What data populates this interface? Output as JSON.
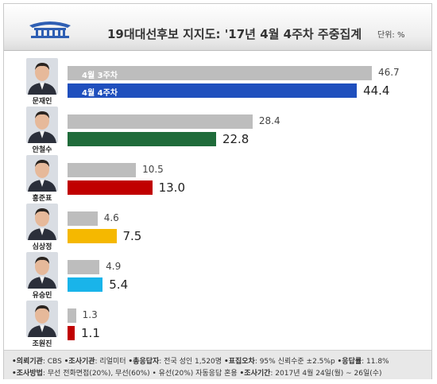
{
  "header": {
    "title": "19대대선후보 지지도: '17년 4월 4주차 주중집계",
    "unit": "단위: %"
  },
  "legend": {
    "prev": "4월 3주차",
    "curr": "4월 4주차"
  },
  "colors": {
    "prev": "#bdbdbd",
    "accent_blue": "#1f4fbd"
  },
  "candidates": [
    {
      "name": "문재인",
      "prev": "46.7",
      "curr": "44.4",
      "color": "#1f4fbd"
    },
    {
      "name": "안철수",
      "prev": "28.4",
      "curr": "22.8",
      "color": "#1f6b3a"
    },
    {
      "name": "홍준표",
      "prev": "10.5",
      "curr": "13.0",
      "color": "#c00000"
    },
    {
      "name": "심상정",
      "prev": "4.6",
      "curr": "7.5",
      "color": "#f5b800"
    },
    {
      "name": "유승민",
      "prev": "4.9",
      "curr": "5.4",
      "color": "#19b4ea"
    },
    {
      "name": "조원진",
      "prev": "1.3",
      "curr": "1.1",
      "color": "#c00000"
    }
  ],
  "chart_data": {
    "type": "bar",
    "categories": [
      "문재인",
      "안철수",
      "홍준표",
      "심상정",
      "유승민",
      "조원진"
    ],
    "series": [
      {
        "name": "4월 3주차",
        "values": [
          46.7,
          28.4,
          10.5,
          4.6,
          4.9,
          1.3
        ]
      },
      {
        "name": "4월 4주차",
        "values": [
          44.4,
          22.8,
          13.0,
          7.5,
          5.4,
          1.1
        ]
      }
    ],
    "title": "19대대선후보 지지도: '17년 4월 4주차 주중집계",
    "unit": "단위: %",
    "orientation": "horizontal",
    "grid": false,
    "legend": "inside-first-bars"
  },
  "footer": {
    "line1": [
      {
        "label": "•의뢰기관",
        "value": ": CBS "
      },
      {
        "label": "•조사기관",
        "value": ": 리얼미터 "
      },
      {
        "label": "•총응답자",
        "value": ": 전국 성인 1,520명 "
      },
      {
        "label": "•표집오차",
        "value": ": 95% 신뢰수준 ±2.5%p "
      },
      {
        "label": "•응답률",
        "value": ": 11.8%"
      }
    ],
    "line2": [
      {
        "label": "•조사방법",
        "value": ": 무선 전화면접(20%), 무선(60%) • 유선(20%) 자동응답 혼용 "
      },
      {
        "label": "•조사기간",
        "value": ": 2017년 4월 24일(월) ~ 26일(수)"
      }
    ]
  }
}
